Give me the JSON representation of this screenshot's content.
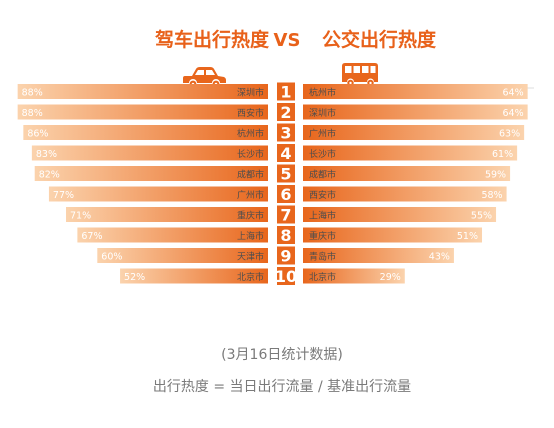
{
  "title": {
    "left": "驾车出行热度",
    "vs": "VS",
    "right": "公交出行热度"
  },
  "icons": {
    "left": "car-icon",
    "right": "bus-icon"
  },
  "colors": {
    "title": "#e8611a",
    "bar_dark": "#e8661c",
    "bar_light": "#fbd3ad",
    "rank_badge": "#e8661c",
    "text": "#4d4d4d",
    "footnote": "#7a7a7a"
  },
  "chart_data": [
    {
      "type": "bar",
      "title": "驾车出行热度",
      "orientation": "horizontal",
      "direction": "right-to-left",
      "ranks": [
        "1",
        "2",
        "3",
        "4",
        "5",
        "6",
        "7",
        "8",
        "9",
        "10"
      ],
      "categories": [
        "深圳市",
        "西安市",
        "杭州市",
        "长沙市",
        "成都市",
        "广州市",
        "重庆市",
        "上海市",
        "天津市",
        "北京市"
      ],
      "values": [
        88,
        88,
        86,
        83,
        82,
        77,
        71,
        67,
        60,
        52
      ],
      "labels": [
        "88%",
        "88%",
        "86%",
        "83%",
        "82%",
        "77%",
        "71%",
        "67%",
        "60%",
        "52%"
      ],
      "unit": "%"
    },
    {
      "type": "bar",
      "title": "公交出行热度",
      "orientation": "horizontal",
      "direction": "left-to-right",
      "ranks": [
        "1",
        "2",
        "3",
        "4",
        "5",
        "6",
        "7",
        "8",
        "9",
        "10"
      ],
      "categories": [
        "杭州市",
        "深圳市",
        "广州市",
        "长沙市",
        "成都市",
        "西安市",
        "上海市",
        "重庆市",
        "青岛市",
        "北京市"
      ],
      "values": [
        64,
        64,
        63,
        61,
        59,
        58,
        55,
        51,
        43,
        29
      ],
      "labels": [
        "64%",
        "64%",
        "63%",
        "61%",
        "59%",
        "58%",
        "55%",
        "51%",
        "43%",
        "29%"
      ],
      "unit": "%"
    }
  ],
  "footnote": {
    "date": "(3月16日统计数据)",
    "formula": "出行热度 = 当日出行流量 / 基准出行流量"
  }
}
